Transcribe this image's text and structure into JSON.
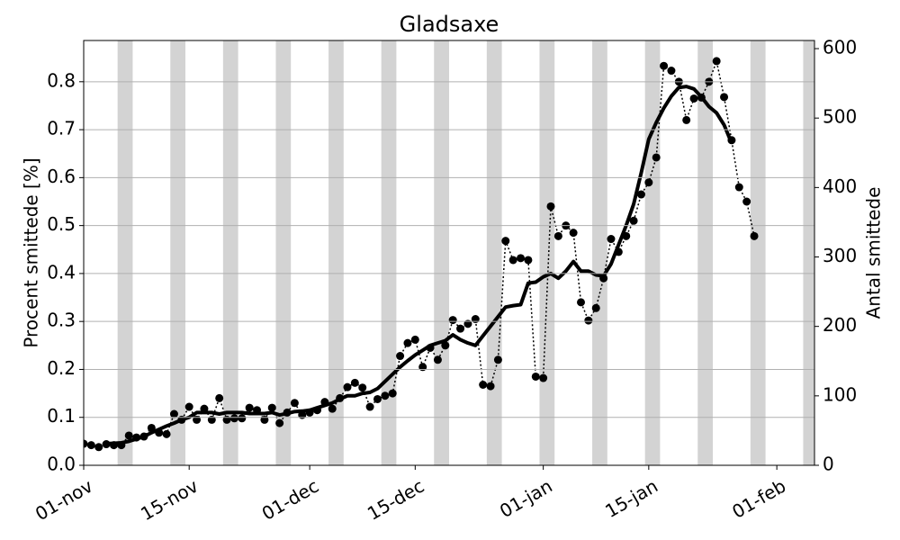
{
  "chart_data": {
    "type": "line",
    "title": "Gladsaxe",
    "ylabel": "Procent smittede [%]",
    "y2label": "Antal smittede",
    "x": [
      0,
      1,
      2,
      3,
      4,
      5,
      6,
      7,
      8,
      9,
      10,
      11,
      12,
      13,
      14,
      15,
      16,
      17,
      18,
      19,
      20,
      21,
      22,
      23,
      24,
      25,
      26,
      27,
      28,
      29,
      30,
      31,
      32,
      33,
      34,
      35,
      36,
      37,
      38,
      39,
      40,
      41,
      42,
      43,
      44,
      45,
      46,
      47,
      48,
      49,
      50,
      51,
      52,
      53,
      54,
      55,
      56,
      57,
      58,
      59,
      60,
      61,
      62,
      63,
      64,
      65,
      66,
      67,
      68,
      69,
      70,
      71,
      72,
      73,
      74,
      75,
      76,
      77,
      78,
      79,
      80,
      81,
      82,
      83,
      84,
      85,
      86,
      87,
      88,
      89
    ],
    "series": [
      {
        "color": "#000000",
        "style": "dotted",
        "markers": true,
        "values": [
          0.045,
          0.042,
          0.038,
          0.044,
          0.042,
          0.042,
          0.062,
          0.058,
          0.06,
          0.078,
          0.068,
          0.065,
          0.107,
          0.095,
          0.122,
          0.095,
          0.118,
          0.095,
          0.14,
          0.095,
          0.098,
          0.098,
          0.12,
          0.115,
          0.095,
          0.12,
          0.088,
          0.11,
          0.13,
          0.105,
          0.11,
          0.115,
          0.132,
          0.118,
          0.14,
          0.163,
          0.172,
          0.162,
          0.122,
          0.138,
          0.145,
          0.15,
          0.228,
          0.255,
          0.262,
          0.205,
          0.245,
          0.22,
          0.25,
          0.303,
          0.285,
          0.295,
          0.305,
          0.168,
          0.165,
          0.22,
          0.468,
          0.428,
          0.432,
          0.428,
          0.185,
          0.182,
          0.54,
          0.478,
          0.5,
          0.485,
          0.34,
          0.302,
          0.328,
          0.39,
          0.472,
          0.445,
          0.478,
          0.51,
          0.565,
          0.59,
          0.642,
          0.833,
          0.823,
          0.8,
          0.72,
          0.765,
          0.767,
          0.8,
          0.843,
          0.768,
          0.678,
          0.58,
          0.55,
          0.478
        ]
      },
      {
        "color": "#000000",
        "style": "solid",
        "markers": false,
        "values": [
          null,
          null,
          null,
          0.045,
          0.046,
          0.047,
          0.05,
          0.055,
          0.06,
          0.068,
          0.075,
          0.082,
          0.088,
          0.095,
          0.1,
          0.11,
          0.11,
          0.11,
          0.107,
          0.11,
          0.11,
          0.11,
          0.108,
          0.108,
          0.108,
          0.11,
          0.105,
          0.108,
          0.112,
          0.113,
          0.115,
          0.12,
          0.125,
          0.13,
          0.138,
          0.145,
          0.145,
          0.15,
          0.152,
          0.16,
          0.175,
          0.19,
          0.205,
          0.218,
          0.23,
          0.24,
          0.25,
          0.255,
          0.26,
          0.272,
          0.262,
          0.255,
          0.25,
          0.27,
          0.29,
          0.31,
          0.33,
          0.333,
          0.335,
          0.38,
          0.382,
          0.393,
          0.4,
          0.39,
          0.405,
          0.425,
          0.405,
          0.405,
          0.397,
          0.395,
          0.42,
          0.46,
          0.5,
          0.545,
          0.61,
          0.68,
          0.715,
          0.745,
          0.77,
          0.788,
          0.79,
          0.785,
          0.768,
          0.748,
          0.735,
          0.71,
          0.672,
          null,
          null,
          null
        ]
      }
    ],
    "xlim": [
      0,
      97
    ],
    "xticks": [
      {
        "value": 0,
        "label": "01-nov"
      },
      {
        "value": 14,
        "label": "15-nov"
      },
      {
        "value": 30,
        "label": "01-dec"
      },
      {
        "value": 44,
        "label": "15-dec"
      },
      {
        "value": 61,
        "label": "01-jan"
      },
      {
        "value": 75,
        "label": "15-jan"
      },
      {
        "value": 92,
        "label": "01-feb"
      }
    ],
    "ylim": [
      0,
      0.886
    ],
    "yticks": [
      {
        "value": 0,
        "label": "0.0"
      },
      0.1,
      0.2,
      0.3,
      0.4,
      0.5,
      0.6,
      0.7,
      0.8
    ],
    "y2lim": [
      0,
      611.7
    ],
    "y2ticks": [
      0,
      100,
      200,
      300,
      400,
      500,
      600
    ],
    "grid": true,
    "shaded_color": "#d3d3d3",
    "shaded_spans": [
      [
        4.5,
        6.5
      ],
      [
        11.5,
        13.5
      ],
      [
        18.5,
        20.5
      ],
      [
        25.5,
        27.5
      ],
      [
        32.5,
        34.5
      ],
      [
        39.5,
        41.5
      ],
      [
        46.5,
        48.5
      ],
      [
        53.5,
        55.5
      ],
      [
        60.5,
        62.5
      ],
      [
        67.5,
        69.5
      ],
      [
        74.5,
        76.5
      ],
      [
        81.5,
        83.5
      ],
      [
        88.5,
        90.5
      ],
      [
        95.5,
        97.5
      ]
    ]
  }
}
